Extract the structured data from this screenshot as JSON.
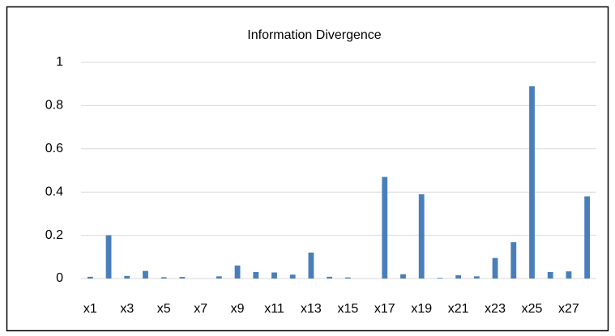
{
  "chart_data": {
    "type": "bar",
    "title": "Information Divergence",
    "categories": [
      "x1",
      null,
      "x3",
      null,
      "x5",
      null,
      "x7",
      null,
      "x9",
      null,
      "x11",
      null,
      "x13",
      null,
      "x15",
      null,
      "x17",
      null,
      "x19",
      null,
      "x21",
      null,
      "x23",
      null,
      "x25",
      null,
      "x27",
      null
    ],
    "values": [
      0.008,
      0.2,
      0.012,
      0.035,
      0.006,
      0.007,
      0,
      0.01,
      0.06,
      0.03,
      0.028,
      0.018,
      0.12,
      0.008,
      0.005,
      0,
      0.47,
      0.02,
      0.39,
      0.003,
      0.015,
      0.01,
      0.095,
      0.168,
      0.89,
      0.03,
      0.033,
      0.38
    ],
    "color": "#4a7ebb",
    "ylim": [
      0,
      1
    ],
    "yticks": [
      0,
      0.2,
      0.4,
      0.6,
      0.8,
      1
    ],
    "grid": true
  }
}
